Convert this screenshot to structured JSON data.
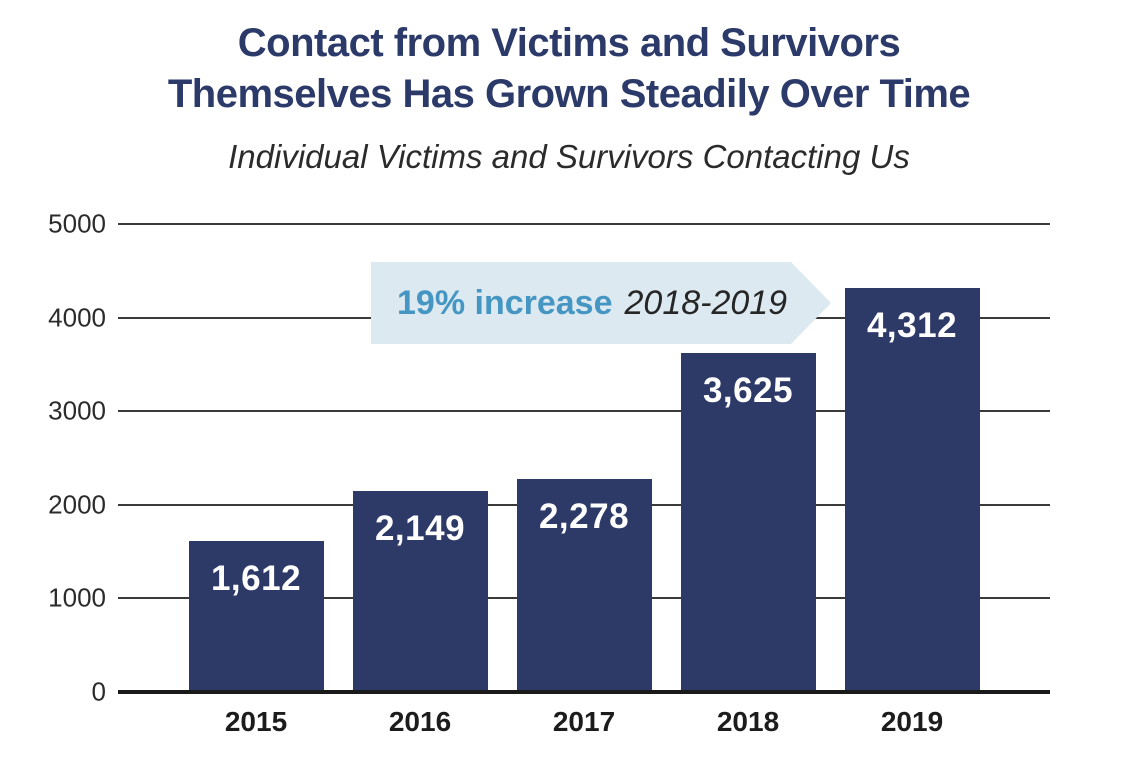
{
  "page": {
    "title_line1": "Contact from Victims and Survivors",
    "title_line2": "Themselves Has Grown Steadily Over Time",
    "subtitle": "Individual Victims and Survivors Contacting Us"
  },
  "annotation": {
    "highlight": "19% increase",
    "period": "2018-2019"
  },
  "colors": {
    "title": "#2c3a6a",
    "bar": "#2d3a68",
    "gridline": "#3a3a3a",
    "axis": "#1a1a1a",
    "callout_bg": "#dde9f1",
    "callout_highlight": "#4596c2",
    "bar_value_text": "#ffffff"
  },
  "chart_data": {
    "type": "bar",
    "title": "Contact from Victims and Survivors Themselves Has Grown Steadily Over Time",
    "subtitle": "Individual Victims and Survivors Contacting Us",
    "categories": [
      "2015",
      "2016",
      "2017",
      "2018",
      "2019"
    ],
    "values": [
      1612,
      2149,
      2278,
      3625,
      4312
    ],
    "value_labels": [
      "1,612",
      "2,149",
      "2,278",
      "3,625",
      "4,312"
    ],
    "xlabel": "",
    "ylabel": "",
    "ylim": [
      0,
      5000
    ],
    "yticks": [
      0,
      1000,
      2000,
      3000,
      4000,
      5000
    ],
    "grid": true,
    "legend": "none",
    "annotation": "19% increase 2018-2019"
  }
}
